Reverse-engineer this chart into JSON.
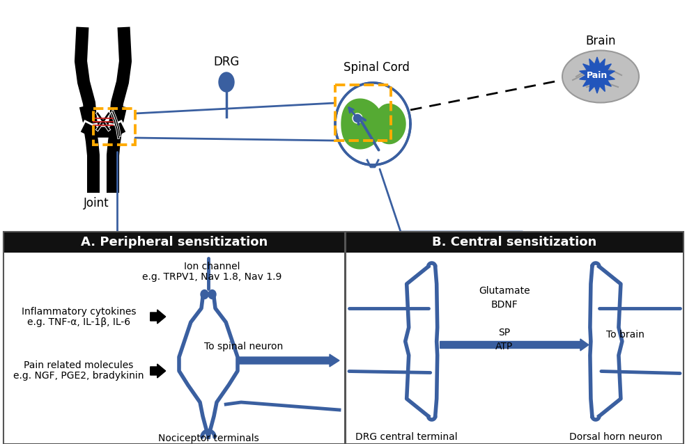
{
  "bg_color": "#ffffff",
  "blue": "#3a5fa0",
  "black": "#000000",
  "header_bg": "#111111",
  "header_fg": "#ffffff",
  "green": "#55aa33",
  "gray_brain": "#aaaaaa",
  "orange": "#ffaa00",
  "red": "#cc2222",
  "title_A": "A. Peripheral sensitization",
  "title_B": "B. Central sensitization",
  "label_joint": "Joint",
  "label_drg": "DRG",
  "label_spinalcord": "Spinal Cord",
  "label_brain": "Brain",
  "label_pain": "Pain",
  "label_nociceptor": "Nociceptor terminals",
  "label_ion_channel_1": "Ion channel",
  "label_ion_channel_2": "e.g. TRPV1, Nav 1.8, Nav 1.9",
  "label_inflam_1": "Inflammatory cytokines",
  "label_inflam_2": "e.g. TNF-α, IL-1β, IL-6",
  "label_pain_mol_1": "Pain related molecules",
  "label_pain_mol_2": "e.g. NGF, PGE2, bradykinin",
  "label_to_spinal": "To spinal neuron",
  "label_glutamate": "Glutamate",
  "label_bdnf": "BDNF",
  "label_sp": "SP",
  "label_atp": "ATP",
  "label_to_brain": "To brain",
  "label_drg_central": "DRG central terminal",
  "label_dorsal_horn": "Dorsal horn neuron"
}
